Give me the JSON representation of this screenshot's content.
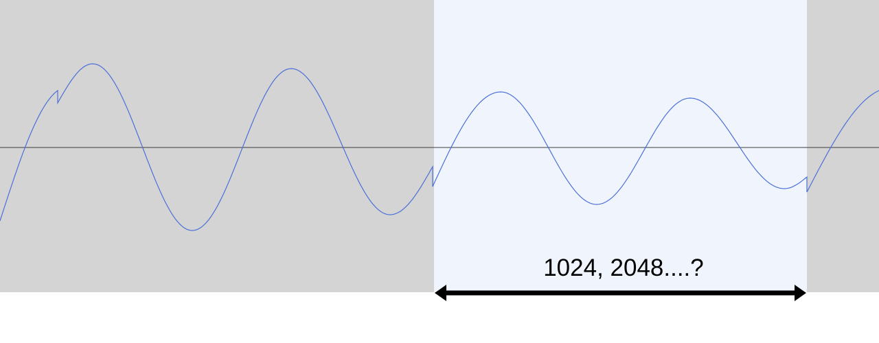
{
  "colors": {
    "track_background": "#d4d4d4",
    "selection_background": "#f0f5fd",
    "page_background": "#ffffff",
    "waveform": "#4a6fd8",
    "centerline": "#3a3a3a",
    "arrow": "#000000",
    "label": "#000000"
  },
  "annotation": {
    "label": "1024, 2048....?"
  }
}
